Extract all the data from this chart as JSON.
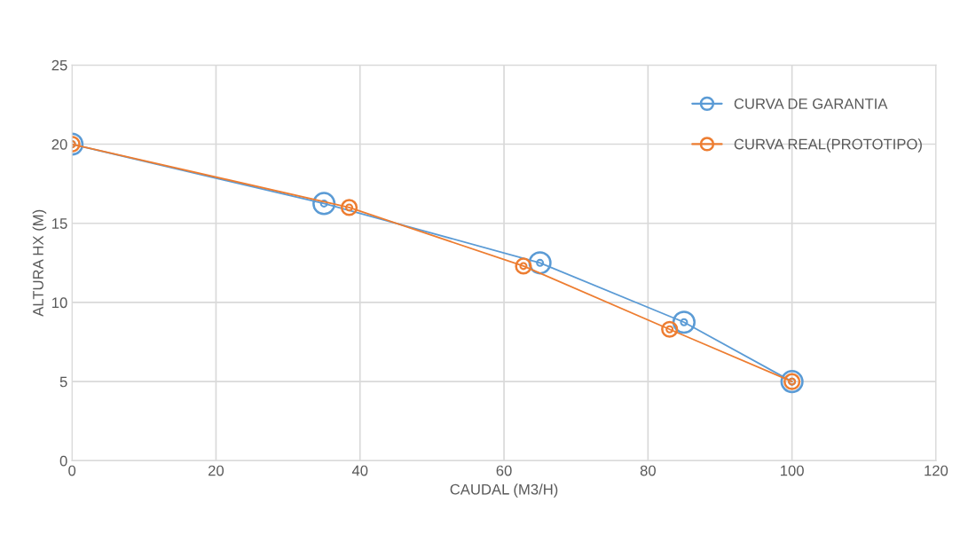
{
  "chart_data": {
    "type": "line",
    "xlabel": "CAUDAL (M3/H)",
    "ylabel": "ALTURA HX (M)",
    "xlim": [
      0,
      120
    ],
    "xticks": [
      0,
      20,
      40,
      60,
      80,
      100,
      120
    ],
    "ylim": [
      0,
      25
    ],
    "yticks": [
      0,
      5,
      10,
      15,
      20,
      25
    ],
    "grid": true,
    "legend": "top right",
    "marker": "circle",
    "line_style": "solid",
    "series": [
      {
        "name": "CURVA DE GARANTIA",
        "color": "#5b9bd5",
        "x": [
          0,
          35,
          65,
          85,
          100
        ],
        "values": [
          20,
          16.25,
          12.5,
          8.75,
          5
        ]
      },
      {
        "name": "CURVA REAL(PROTOTIPO)",
        "color": "#ed7d31",
        "x": [
          0,
          38.5,
          62.7,
          83,
          100
        ],
        "values": [
          20,
          16,
          12.3,
          8.3,
          5
        ]
      }
    ]
  }
}
